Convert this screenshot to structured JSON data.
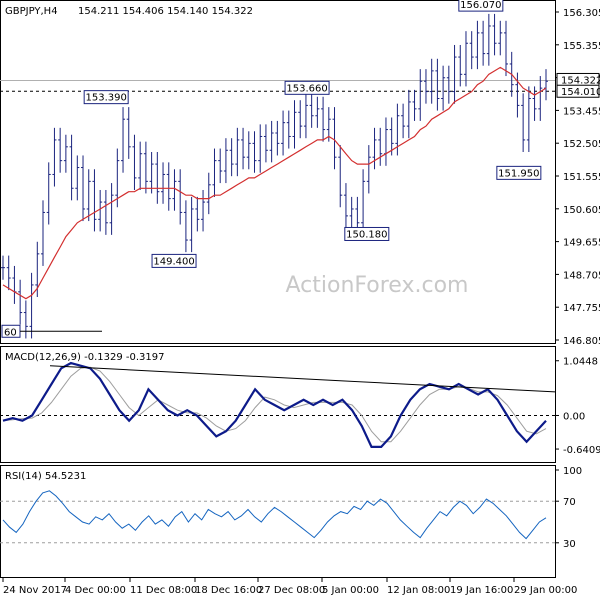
{
  "header": {
    "symbol": "GBPJPY,H4",
    "ohlc": "154.211 154.406 154.140 154.322"
  },
  "watermark": "ActionForex.com",
  "colors": {
    "price": "#1a237e",
    "ma": "#d32f2f",
    "macd": "#0d1b8a",
    "signal": "#9e9e9e",
    "rsi": "#1565c0",
    "grid": "#000000"
  },
  "chart_data": [
    {
      "type": "line",
      "name": "price",
      "ylim": [
        146.805,
        156.305
      ],
      "y_ticks": [
        "156.305",
        "155.355",
        "154.405",
        "153.455",
        "152.505",
        "151.555",
        "150.605",
        "149.655",
        "148.705",
        "147.755",
        "146.805"
      ],
      "current_label": "154.322",
      "hline_label": "154.010",
      "hline_value": 154.01,
      "annotations": [
        {
          "text": "156.070",
          "value": 156.07,
          "t": 0.88
        },
        {
          "text": "153.660",
          "value": 153.66,
          "t": 0.56
        },
        {
          "text": "153.390",
          "value": 153.39,
          "t": 0.19
        },
        {
          "text": "149.400",
          "value": 149.4,
          "t": 0.315
        },
        {
          "text": "150.180",
          "value": 150.18,
          "t": 0.67
        },
        {
          "text": "151.950",
          "value": 151.95,
          "t": 0.95
        }
      ],
      "left_label": "60",
      "close": [
        148.9,
        148.6,
        148.2,
        147.6,
        147.2,
        148.4,
        149.3,
        150.5,
        151.6,
        152.6,
        152.0,
        152.4,
        151.2,
        151.8,
        150.6,
        151.4,
        150.3,
        150.8,
        150.2,
        151.0,
        152.0,
        153.2,
        152.4,
        151.5,
        152.2,
        151.4,
        151.9,
        151.1,
        151.6,
        150.9,
        151.4,
        150.5,
        149.7,
        150.6,
        150.3,
        150.8,
        151.3,
        152.0,
        151.7,
        152.3,
        151.9,
        152.6,
        152.1,
        152.5,
        152.0,
        152.7,
        152.3,
        152.8,
        152.5,
        153.1,
        152.7,
        153.4,
        153.0,
        153.6,
        153.3,
        153.5,
        152.9,
        153.2,
        152.1,
        151.0,
        150.4,
        150.6,
        150.2,
        151.4,
        152.1,
        152.6,
        152.2,
        152.9,
        152.5,
        153.3,
        153.0,
        153.7,
        153.5,
        154.3,
        154.0,
        154.6,
        153.8,
        154.4,
        154.0,
        155.0,
        154.5,
        155.4,
        155.0,
        155.7,
        155.1,
        155.9,
        155.4,
        155.7,
        154.8,
        154.2,
        153.6,
        152.6,
        153.8,
        153.5,
        154.1,
        154.3
      ],
      "ma": [
        148.4,
        148.3,
        148.2,
        148.1,
        148.0,
        148.1,
        148.3,
        148.6,
        148.9,
        149.2,
        149.5,
        149.8,
        150.0,
        150.2,
        150.3,
        150.4,
        150.5,
        150.6,
        150.7,
        150.8,
        150.9,
        151.0,
        151.1,
        151.1,
        151.2,
        151.2,
        151.2,
        151.2,
        151.2,
        151.2,
        151.2,
        151.1,
        151.0,
        151.0,
        150.9,
        150.9,
        150.9,
        151.0,
        151.0,
        151.1,
        151.2,
        151.3,
        151.4,
        151.5,
        151.5,
        151.6,
        151.7,
        151.8,
        151.9,
        152.0,
        152.1,
        152.2,
        152.3,
        152.4,
        152.5,
        152.6,
        152.6,
        152.7,
        152.6,
        152.4,
        152.2,
        152.0,
        151.9,
        151.9,
        151.9,
        152.0,
        152.1,
        152.2,
        152.3,
        152.4,
        152.5,
        152.6,
        152.7,
        152.9,
        153.0,
        153.2,
        153.3,
        153.4,
        153.5,
        153.7,
        153.8,
        153.9,
        154.0,
        154.2,
        154.3,
        154.5,
        154.6,
        154.7,
        154.6,
        154.5,
        154.3,
        154.1,
        154.0,
        153.9,
        154.0,
        154.1
      ]
    },
    {
      "type": "line",
      "name": "MACD",
      "label": "MACD(12,26,9) -0.1329 -0.3197",
      "ylim": [
        -0.85,
        1.25
      ],
      "y_ticks": [
        "1.0448",
        "0.00",
        "-0.6409"
      ],
      "tick_values": [
        1.0448,
        0.0,
        -0.6409
      ],
      "main": [
        -0.1,
        -0.05,
        -0.1,
        0.0,
        0.3,
        0.6,
        0.9,
        1.0,
        0.95,
        0.9,
        0.7,
        0.4,
        0.1,
        -0.1,
        0.1,
        0.5,
        0.3,
        0.1,
        0.0,
        0.1,
        0.0,
        -0.2,
        -0.4,
        -0.3,
        -0.1,
        0.2,
        0.5,
        0.3,
        0.2,
        0.1,
        0.2,
        0.3,
        0.2,
        0.3,
        0.2,
        0.3,
        0.1,
        -0.2,
        -0.6,
        -0.6,
        -0.4,
        0.0,
        0.3,
        0.5,
        0.6,
        0.55,
        0.5,
        0.6,
        0.5,
        0.4,
        0.5,
        0.3,
        0.0,
        -0.3,
        -0.5,
        -0.3,
        -0.1
      ],
      "signal": [
        -0.1,
        -0.08,
        -0.06,
        -0.05,
        0.05,
        0.25,
        0.5,
        0.75,
        0.9,
        0.92,
        0.85,
        0.65,
        0.4,
        0.15,
        0.0,
        0.15,
        0.3,
        0.2,
        0.1,
        0.05,
        0.05,
        -0.05,
        -0.2,
        -0.3,
        -0.25,
        -0.1,
        0.15,
        0.35,
        0.3,
        0.2,
        0.15,
        0.2,
        0.25,
        0.25,
        0.25,
        0.25,
        0.2,
        0.0,
        -0.3,
        -0.5,
        -0.5,
        -0.3,
        -0.05,
        0.2,
        0.4,
        0.5,
        0.5,
        0.55,
        0.52,
        0.45,
        0.45,
        0.38,
        0.2,
        -0.05,
        -0.3,
        -0.35,
        -0.25
      ],
      "trendline": [
        0.95,
        0.45
      ]
    },
    {
      "type": "line",
      "name": "RSI",
      "label": "RSI(14) 54.5231",
      "ylim": [
        0,
        100
      ],
      "y_ticks": [
        "100",
        "70",
        "30"
      ],
      "tick_values": [
        100,
        70,
        30
      ],
      "values": [
        52,
        45,
        40,
        48,
        60,
        70,
        78,
        80,
        75,
        68,
        60,
        55,
        50,
        48,
        55,
        52,
        58,
        50,
        44,
        48,
        42,
        50,
        56,
        48,
        52,
        46,
        55,
        60,
        50,
        58,
        52,
        62,
        58,
        55,
        60,
        52,
        56,
        62,
        55,
        50,
        58,
        64,
        60,
        55,
        50,
        45,
        40,
        35,
        42,
        50,
        56,
        60,
        58,
        65,
        62,
        70,
        66,
        72,
        68,
        60,
        52,
        46,
        40,
        35,
        44,
        52,
        60,
        56,
        64,
        70,
        66,
        58,
        64,
        72,
        68,
        62,
        56,
        48,
        40,
        34,
        42,
        50,
        54
      ]
    },
    {
      "type": "axis",
      "name": "time-axis",
      "x_ticks": [
        "24 Nov 2017",
        "4 Dec 00:00",
        "11 Dec 08:00",
        "18 Dec 16:00",
        "27 Dec 08:00",
        "5 Jan 00:00",
        "12 Jan 08:00",
        "19 Jan 16:00",
        "29 Jan 00:00"
      ]
    }
  ]
}
